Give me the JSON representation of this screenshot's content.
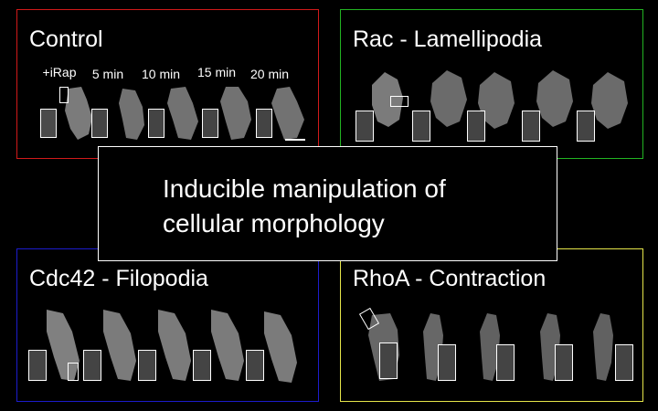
{
  "colors": {
    "control": "#d11a1a",
    "rac": "#22b422",
    "cdc42": "#1c1ccc",
    "rhoa": "#e6e64a",
    "center": "#ffffff"
  },
  "panels": {
    "control": {
      "title": "Control",
      "timepoints": [
        "+iRap",
        "5 min",
        "10 min",
        "15 min",
        "20 min"
      ]
    },
    "rac": {
      "title": "Rac - Lamellipodia"
    },
    "cdc42": {
      "title": "Cdc42 - Filopodia"
    },
    "rhoa": {
      "title": "RhoA - Contraction"
    }
  },
  "center": {
    "line1": "Inducible manipulation of",
    "line2": "cellular morphology"
  }
}
